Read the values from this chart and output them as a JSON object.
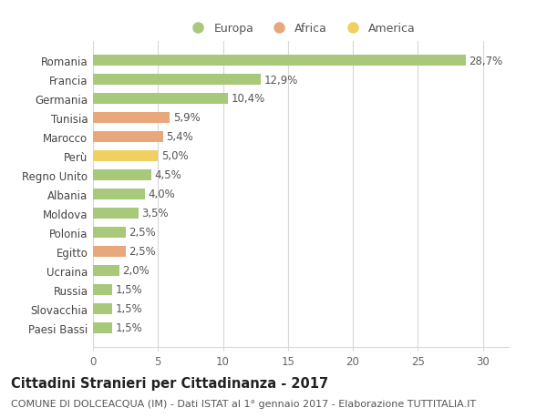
{
  "categories": [
    "Romania",
    "Francia",
    "Germania",
    "Tunisia",
    "Marocco",
    "Perù",
    "Regno Unito",
    "Albania",
    "Moldova",
    "Polonia",
    "Egitto",
    "Ucraina",
    "Russia",
    "Slovacchia",
    "Paesi Bassi"
  ],
  "values": [
    28.7,
    12.9,
    10.4,
    5.9,
    5.4,
    5.0,
    4.5,
    4.0,
    3.5,
    2.5,
    2.5,
    2.0,
    1.5,
    1.5,
    1.5
  ],
  "labels": [
    "28,7%",
    "12,9%",
    "10,4%",
    "5,9%",
    "5,4%",
    "5,0%",
    "4,5%",
    "4,0%",
    "3,5%",
    "2,5%",
    "2,5%",
    "2,0%",
    "1,5%",
    "1,5%",
    "1,5%"
  ],
  "continents": [
    "Europa",
    "Europa",
    "Europa",
    "Africa",
    "Africa",
    "America",
    "Europa",
    "Europa",
    "Europa",
    "Europa",
    "Africa",
    "Europa",
    "Europa",
    "Europa",
    "Europa"
  ],
  "colors": {
    "Europa": "#a8c87a",
    "Africa": "#e8a87c",
    "America": "#f0d060"
  },
  "bar_colors": [
    "#a8c87a",
    "#a8c87a",
    "#a8c87a",
    "#e8a87c",
    "#e8a87c",
    "#f0d060",
    "#a8c87a",
    "#a8c87a",
    "#a8c87a",
    "#a8c87a",
    "#e8a87c",
    "#a8c87a",
    "#a8c87a",
    "#a8c87a",
    "#a8c87a"
  ],
  "xlim": [
    0,
    32
  ],
  "xticks": [
    0,
    5,
    10,
    15,
    20,
    25,
    30
  ],
  "title": "Cittadini Stranieri per Cittadinanza - 2017",
  "subtitle": "COMUNE DI DOLCEACQUA (IM) - Dati ISTAT al 1° gennaio 2017 - Elaborazione TUTTITALIA.IT",
  "legend_order": [
    "Europa",
    "Africa",
    "America"
  ],
  "background_color": "#ffffff",
  "plot_bg_color": "#f9f9f0",
  "grid_color": "#d8d8d8",
  "bar_height": 0.55,
  "title_fontsize": 10.5,
  "subtitle_fontsize": 8,
  "label_fontsize": 8.5,
  "ytick_fontsize": 8.5,
  "xtick_fontsize": 8.5,
  "legend_fontsize": 9
}
